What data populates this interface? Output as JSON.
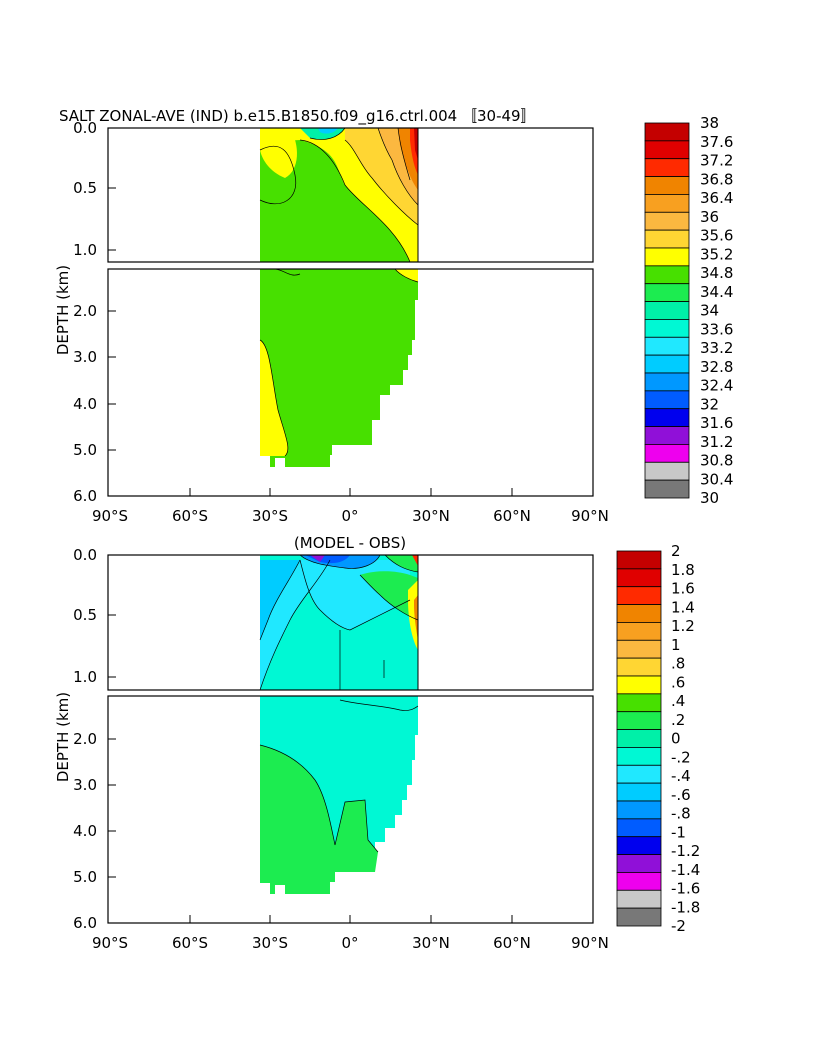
{
  "chart_data": [
    {
      "type": "heatmap",
      "title": "SALT ZONAL-AVE (IND) b.e15.B1850.f09_g16.ctrl.004 〚30-49〛",
      "ylabel": "DEPTH (km)",
      "xlabel": "",
      "x_ticks": [
        "90°S",
        "60°S",
        "30°S",
        "0°",
        "30°N",
        "60°N",
        "90°N"
      ],
      "y_ticks_upper": [
        "0.0",
        "0.5",
        "1.0"
      ],
      "y_ticks_lower": [
        "2.0",
        "3.0",
        "4.0",
        "5.0",
        "6.0"
      ],
      "xlim": [
        -90,
        90
      ],
      "ylim": [
        0,
        6
      ],
      "data_extent_lat": [
        -34,
        25
      ],
      "colorbar": {
        "labels": [
          "38",
          "37.6",
          "37.2",
          "36.8",
          "36.4",
          "36",
          "35.6",
          "35.2",
          "34.8",
          "34.4",
          "34",
          "33.6",
          "33.2",
          "32.8",
          "32.4",
          "32",
          "31.6",
          "31.2",
          "30.8",
          "30.4",
          "30"
        ],
        "colors": [
          "#c40000",
          "#e00000",
          "#ff2a00",
          "#f08400",
          "#f8a020",
          "#fbb840",
          "#ffd633",
          "#ffff00",
          "#47e000",
          "#1cec50",
          "#00f0a8",
          "#00f8d4",
          "#20e8ff",
          "#00ccff",
          "#0098ff",
          "#005cff",
          "#0000ee",
          "#9010d8",
          "#ee00ee",
          "#c8c8c8",
          "#787878"
        ]
      }
    },
    {
      "type": "heatmap",
      "title": "(MODEL - OBS)",
      "ylabel": "DEPTH (km)",
      "xlabel": "",
      "x_ticks": [
        "90°S",
        "60°S",
        "30°S",
        "0°",
        "30°N",
        "60°N",
        "90°N"
      ],
      "y_ticks_upper": [
        "0.0",
        "0.5",
        "1.0"
      ],
      "y_ticks_lower": [
        "2.0",
        "3.0",
        "4.0",
        "5.0",
        "6.0"
      ],
      "xlim": [
        -90,
        90
      ],
      "ylim": [
        0,
        6
      ],
      "data_extent_lat": [
        -34,
        25
      ],
      "colorbar": {
        "labels": [
          "2",
          "1.8",
          "1.6",
          "1.4",
          "1.2",
          "1",
          ".8",
          ".6",
          ".4",
          ".2",
          "0",
          "-.2",
          "-.4",
          "-.6",
          "-.8",
          "-1",
          "-1.2",
          "-1.4",
          "-1.6",
          "-1.8",
          "-2"
        ],
        "colors": [
          "#c40000",
          "#e00000",
          "#ff2a00",
          "#f08400",
          "#f8a020",
          "#fbb840",
          "#ffd633",
          "#ffff00",
          "#47e000",
          "#1cec50",
          "#00f0a8",
          "#00f8d4",
          "#20e8ff",
          "#00ccff",
          "#0098ff",
          "#005cff",
          "#0000ee",
          "#9010d8",
          "#ee00ee",
          "#c8c8c8",
          "#787878"
        ]
      }
    }
  ]
}
